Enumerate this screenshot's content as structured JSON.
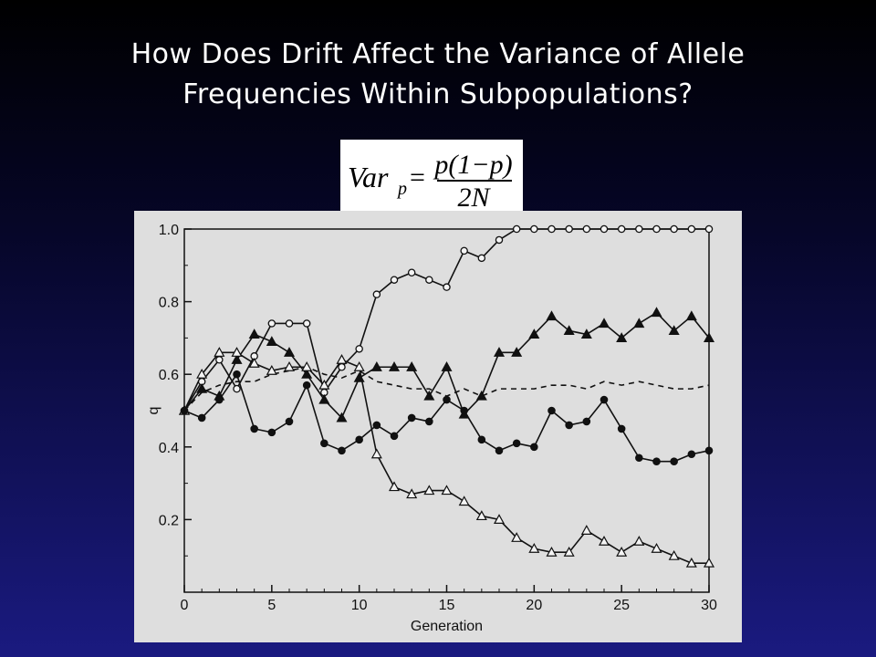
{
  "slide": {
    "title_line1": "How Does Drift Affect the Variance of Allele",
    "title_line2": "Frequencies Within Subpopulations?"
  },
  "formula": {
    "lhs": "Var",
    "lhs_sub": "p",
    "equals": "=",
    "numerator": "p(1−p)",
    "denominator": "2N"
  },
  "chart_data": {
    "type": "line",
    "xlabel": "Generation",
    "ylabel": "q",
    "xlim": [
      0,
      30
    ],
    "ylim": [
      0,
      1.0
    ],
    "x_ticks": [
      0,
      5,
      10,
      15,
      20,
      25,
      30
    ],
    "y_ticks": [
      0.2,
      0.4,
      0.6,
      0.8,
      1.0
    ],
    "x_tick_labels": [
      "0",
      "5",
      "10",
      "15",
      "20",
      "25",
      "30"
    ],
    "y_tick_labels": [
      "0.2",
      "0.4",
      "0.6",
      "0.8",
      "1.0"
    ],
    "grid": false,
    "x": [
      0,
      1,
      2,
      3,
      4,
      5,
      6,
      7,
      8,
      9,
      10,
      11,
      12,
      13,
      14,
      15,
      16,
      17,
      18,
      19,
      20,
      21,
      22,
      23,
      24,
      25,
      26,
      27,
      28,
      29,
      30
    ],
    "series": [
      {
        "marker": "open-circle",
        "values": [
          0.5,
          0.58,
          0.64,
          0.56,
          0.65,
          0.74,
          0.74,
          0.74,
          0.55,
          0.62,
          0.67,
          0.82,
          0.86,
          0.88,
          0.86,
          0.84,
          0.94,
          0.92,
          0.97,
          1.0,
          1.0,
          1.0,
          1.0,
          1.0,
          1.0,
          1.0,
          1.0,
          1.0,
          1.0,
          1.0,
          1.0
        ]
      },
      {
        "marker": "filled-triangle",
        "values": [
          0.5,
          0.56,
          0.54,
          0.64,
          0.71,
          0.69,
          0.66,
          0.6,
          0.53,
          0.48,
          0.59,
          0.62,
          0.62,
          0.62,
          0.54,
          0.62,
          0.49,
          0.54,
          0.66,
          0.66,
          0.71,
          0.76,
          0.72,
          0.71,
          0.74,
          0.7,
          0.74,
          0.77,
          0.72,
          0.76,
          0.7
        ]
      },
      {
        "marker": "open-triangle",
        "values": [
          0.5,
          0.6,
          0.66,
          0.66,
          0.63,
          0.61,
          0.62,
          0.62,
          0.57,
          0.64,
          0.62,
          0.38,
          0.29,
          0.27,
          0.28,
          0.28,
          0.25,
          0.21,
          0.2,
          0.15,
          0.12,
          0.11,
          0.11,
          0.17,
          0.14,
          0.11,
          0.14,
          0.12,
          0.1,
          0.08,
          0.08
        ]
      },
      {
        "marker": "filled-circle",
        "values": [
          0.5,
          0.48,
          0.53,
          0.6,
          0.45,
          0.44,
          0.47,
          0.57,
          0.41,
          0.39,
          0.42,
          0.46,
          0.43,
          0.48,
          0.47,
          0.53,
          0.5,
          0.42,
          0.39,
          0.41,
          0.4,
          0.5,
          0.46,
          0.47,
          0.53,
          0.45,
          0.37,
          0.36,
          0.36,
          0.38,
          0.39
        ]
      },
      {
        "marker": "none",
        "dashed": true,
        "values": [
          0.5,
          0.55,
          0.57,
          0.58,
          0.58,
          0.6,
          0.61,
          0.62,
          0.6,
          0.59,
          0.61,
          0.58,
          0.57,
          0.56,
          0.56,
          0.54,
          0.56,
          0.54,
          0.56,
          0.56,
          0.56,
          0.57,
          0.57,
          0.56,
          0.58,
          0.57,
          0.58,
          0.57,
          0.56,
          0.56,
          0.57
        ]
      }
    ]
  }
}
